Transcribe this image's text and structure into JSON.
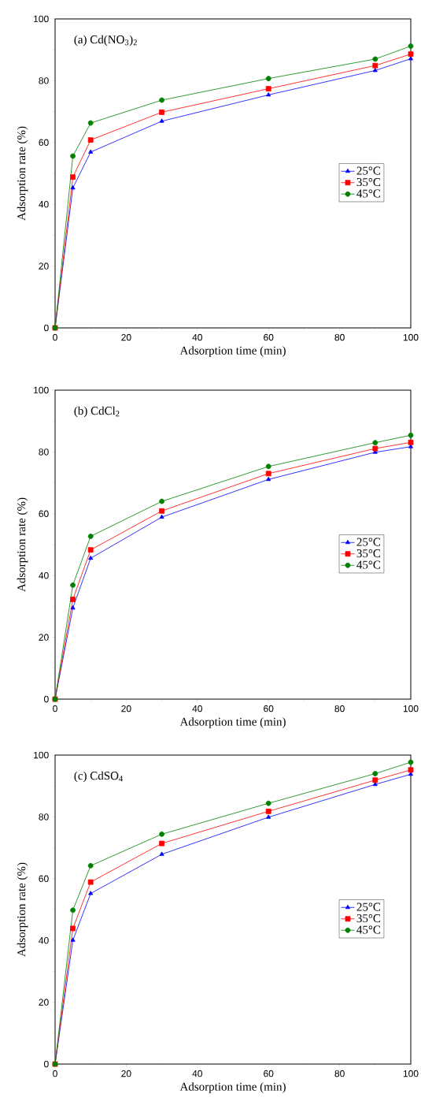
{
  "chart_data": [
    {
      "type": "line",
      "xlabel": "Adsorption time (min)",
      "ylabel": "Adsorption rate (%)",
      "annotations": [
        "(a) Cd(NO$_{3}$)$_{2}$"
      ],
      "x": [
        0,
        5,
        10,
        30,
        60,
        90,
        100
      ],
      "xlim": [
        0,
        100
      ],
      "ylim": [
        0,
        100
      ],
      "xticks": [
        0,
        20,
        40,
        60,
        80,
        100
      ],
      "yticks": [
        0,
        20,
        40,
        60,
        80,
        100
      ],
      "legend": "right",
      "line_style": "solid",
      "series": [
        {
          "name": "25°C",
          "color": "#0000ff",
          "marker": "triangle",
          "values": [
            0,
            45.3,
            56.9,
            66.9,
            75.4,
            83.3,
            87.1
          ]
        },
        {
          "name": "35°C",
          "color": "#ff0000",
          "marker": "square",
          "values": [
            0,
            48.8,
            60.8,
            69.8,
            77.4,
            84.9,
            88.6
          ]
        },
        {
          "name": "45°C",
          "color": "#008000",
          "marker": "circle",
          "values": [
            0,
            55.6,
            66.3,
            73.7,
            80.7,
            87.0,
            91.2
          ]
        }
      ]
    },
    {
      "type": "line",
      "xlabel": "Adsorption time (min)",
      "ylabel": "Adsorption rate (%)",
      "annotations": [
        "(b) CdCl$_{2}$"
      ],
      "x": [
        0,
        5,
        10,
        30,
        60,
        90,
        100
      ],
      "xlim": [
        0,
        100
      ],
      "ylim": [
        0,
        100
      ],
      "xticks": [
        0,
        20,
        40,
        60,
        80,
        100
      ],
      "yticks": [
        0,
        20,
        40,
        60,
        80,
        100
      ],
      "legend": "right",
      "line_style": "solid",
      "series": [
        {
          "name": "25°C",
          "color": "#0000ff",
          "marker": "triangle",
          "values": [
            0,
            29.5,
            45.6,
            58.9,
            71.1,
            79.9,
            81.7
          ]
        },
        {
          "name": "35°C",
          "color": "#ff0000",
          "marker": "square",
          "values": [
            0,
            32.3,
            48.3,
            60.9,
            73.0,
            81.1,
            83.1
          ]
        },
        {
          "name": "45°C",
          "color": "#008000",
          "marker": "circle",
          "values": [
            0,
            36.9,
            52.7,
            64.0,
            75.3,
            83.0,
            85.4
          ]
        }
      ]
    },
    {
      "type": "line",
      "xlabel": "Adsorption time (min)",
      "ylabel": "Adsorption rate (%)",
      "annotations": [
        "(c) CdSO$_{4}$"
      ],
      "x": [
        0,
        5,
        10,
        30,
        60,
        90,
        100
      ],
      "xlim": [
        0,
        100
      ],
      "ylim": [
        0,
        100
      ],
      "xticks": [
        0,
        20,
        40,
        60,
        80,
        100
      ],
      "yticks": [
        0,
        20,
        40,
        60,
        80,
        100
      ],
      "legend": "right",
      "line_style": "solid",
      "series": [
        {
          "name": "25°C",
          "color": "#0000ff",
          "marker": "triangle",
          "values": [
            0,
            40.1,
            55.2,
            67.9,
            79.9,
            90.5,
            93.8
          ]
        },
        {
          "name": "35°C",
          "color": "#ff0000",
          "marker": "square",
          "values": [
            0,
            43.9,
            58.9,
            71.4,
            81.8,
            91.9,
            95.2
          ]
        },
        {
          "name": "45°C",
          "color": "#008000",
          "marker": "circle",
          "values": [
            0,
            49.8,
            64.2,
            74.4,
            84.4,
            94.0,
            97.7
          ]
        }
      ]
    }
  ]
}
